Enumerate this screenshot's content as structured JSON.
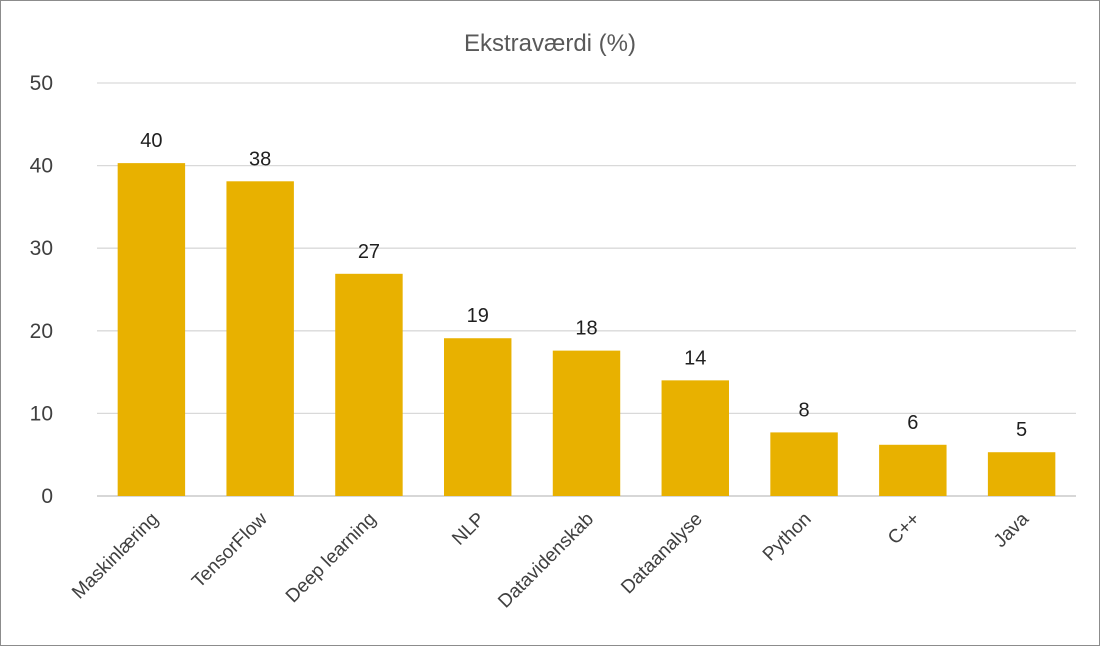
{
  "chart_data": {
    "type": "bar",
    "title": "Ekstraværdi (%)",
    "xlabel": "",
    "ylabel": "",
    "categories": [
      "Maskinlæring",
      "TensorFlow",
      "Deep learning",
      "NLP",
      "Datavidenskab",
      "Dataanalyse",
      "Python",
      "C++",
      "Java"
    ],
    "values": [
      40.3,
      38.1,
      26.9,
      19.1,
      17.6,
      14.0,
      7.7,
      6.2,
      5.3
    ],
    "value_labels": [
      "40",
      "38",
      "27",
      "19",
      "18",
      "14",
      "8",
      "6",
      "5"
    ],
    "ylim": [
      0,
      50
    ],
    "y_ticks": [
      "0",
      "10",
      "20",
      "30",
      "40",
      "50"
    ],
    "grid": true,
    "bar_color": "#E8B100",
    "gridline_color": "#d9d9d9"
  }
}
